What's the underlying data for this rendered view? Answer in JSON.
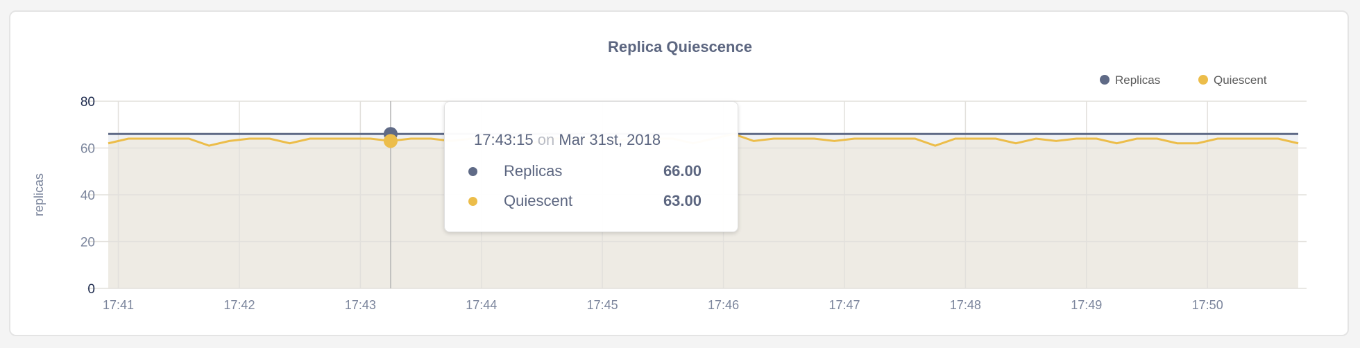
{
  "colors": {
    "replicas": "#5f6a86",
    "quiescent": "#ecbd4a",
    "replicas_fill": "#eff1f4",
    "quiescent_fill": "#eeebe4",
    "grid": "#e2e0dc",
    "title": "#5c6680",
    "tick": "#7b859c",
    "tick_strong": "#1d2a4d"
  },
  "chart_data": {
    "type": "area",
    "title": "Replica Quiescence",
    "xlabel": "",
    "ylabel": "replicas",
    "ylim": [
      0,
      80
    ],
    "yticks": [
      "0",
      "20",
      "40",
      "60",
      "80"
    ],
    "xticks": [
      "17:41",
      "17:42",
      "17:43",
      "17:44",
      "17:45",
      "17:46",
      "17:47",
      "17:48",
      "17:49",
      "17:50"
    ],
    "xlim": [
      "17:40:55",
      "17:50:45"
    ],
    "x_start": "17:40:55",
    "x_step_seconds": 10,
    "grid": true,
    "legend_position": "top-right",
    "series": [
      {
        "name": "Replicas",
        "values": [
          66,
          66,
          66,
          66,
          66,
          66,
          66,
          66,
          66,
          66,
          66,
          66,
          66,
          66,
          66,
          66,
          66,
          66,
          66,
          66,
          66,
          66,
          66,
          66,
          66,
          66,
          66,
          66,
          66,
          66,
          66,
          66,
          66,
          66,
          66,
          66,
          66,
          66,
          66,
          66,
          66,
          66,
          66,
          66,
          66,
          66,
          66,
          66,
          66,
          66,
          66,
          66,
          66,
          66,
          66,
          66,
          66,
          66,
          66,
          66
        ]
      },
      {
        "name": "Quiescent",
        "values": [
          62,
          64,
          64,
          64,
          64,
          61,
          63,
          64,
          64,
          62,
          64,
          64,
          64,
          64,
          63,
          64,
          64,
          63,
          64,
          64,
          64,
          62,
          64,
          64,
          64,
          63,
          64,
          64,
          64,
          62,
          64,
          66,
          63,
          64,
          64,
          64,
          63,
          64,
          64,
          64,
          64,
          61,
          64,
          64,
          64,
          62,
          64,
          63,
          64,
          64,
          62,
          64,
          64,
          62,
          62,
          64,
          64,
          64,
          64,
          62
        ]
      }
    ],
    "hover_index": 14
  },
  "tooltip": {
    "time": "17:43:15",
    "on": "on",
    "date": "Mar 31st, 2018",
    "rows": [
      {
        "label": "Replicas",
        "value": "66.00"
      },
      {
        "label": "Quiescent",
        "value": "63.00"
      }
    ]
  }
}
